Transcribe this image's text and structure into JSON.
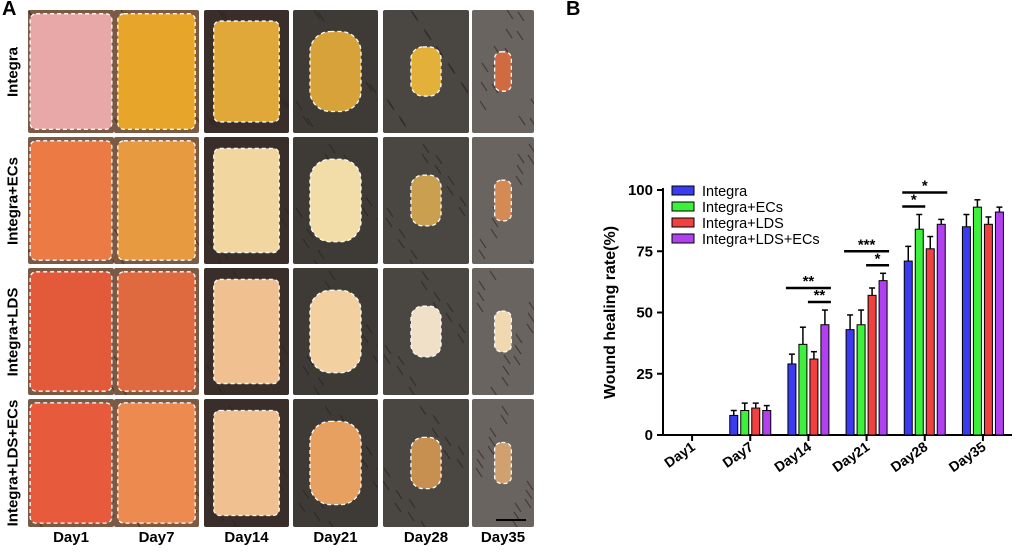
{
  "panel_a": {
    "label": "A",
    "rows": [
      "Integra",
      "Integra+ECs",
      "Integra+LDS",
      "Integra+LDS+ECs"
    ],
    "columns": [
      "Day1",
      "Day7",
      "Day14",
      "Day21",
      "Day28",
      "Day35"
    ]
  },
  "panel_b": {
    "label": "B"
  },
  "chart_data": {
    "type": "bar",
    "title": "",
    "xlabel": "",
    "ylabel": "Wound healing rate(%)",
    "ylim": [
      0,
      100
    ],
    "yticks": [
      0,
      25,
      50,
      75,
      100
    ],
    "categories": [
      "Day1",
      "Day7",
      "Day14",
      "Day21",
      "Day28",
      "Day35"
    ],
    "series": [
      {
        "name": "Integra",
        "color": "#3b3bf0",
        "values": [
          0,
          8,
          29,
          43,
          71,
          85
        ],
        "errors": [
          0,
          2,
          4,
          6,
          6,
          5
        ]
      },
      {
        "name": "Integra+ECs",
        "color": "#3cf03c",
        "values": [
          0,
          10,
          37,
          45,
          84,
          93
        ],
        "errors": [
          0,
          3,
          7,
          6,
          6,
          3
        ]
      },
      {
        "name": "Integra+LDS",
        "color": "#f04040",
        "values": [
          0,
          11,
          31,
          57,
          76,
          86
        ],
        "errors": [
          0,
          2,
          3,
          3,
          5,
          3
        ]
      },
      {
        "name": "Integra+LDS+ECs",
        "color": "#b040f0",
        "values": [
          0,
          10,
          45,
          63,
          86,
          91
        ],
        "errors": [
          0,
          2,
          6,
          3,
          2,
          2
        ]
      }
    ],
    "legend_position": "top-left",
    "significance": [
      {
        "label": "**",
        "category": "Day14",
        "from_series": 0,
        "to_series": 3,
        "level": 1
      },
      {
        "label": "**",
        "category": "Day14",
        "from_series": 2,
        "to_series": 3,
        "level": 0
      },
      {
        "label": "***",
        "category": "Day21",
        "from_series": 0,
        "to_series": 3,
        "level": 1
      },
      {
        "label": "*",
        "category": "Day21",
        "from_series": 2,
        "to_series": 3,
        "level": 0
      },
      {
        "label": "*",
        "category": "Day28",
        "from_series": 0,
        "to_series": 3,
        "level": 1
      },
      {
        "label": "*",
        "category": "Day28",
        "from_series": 0,
        "to_series": 1,
        "level": 0
      }
    ]
  }
}
